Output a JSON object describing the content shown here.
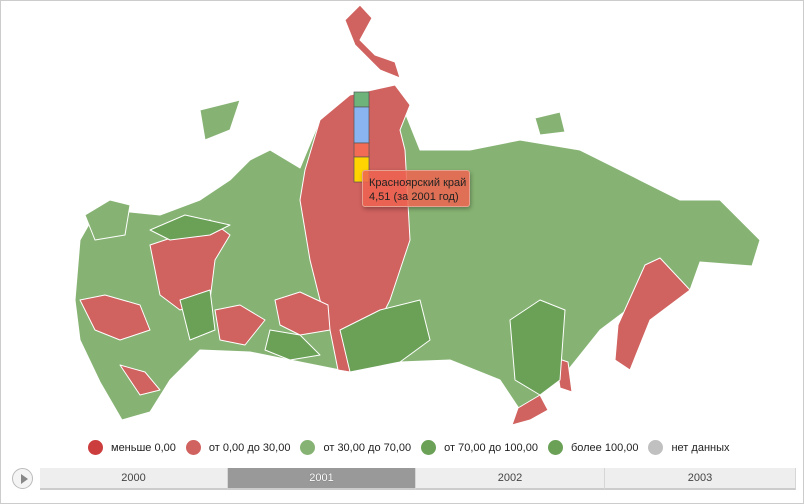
{
  "colors": {
    "red": "#d0625f",
    "light_green": "#86b373",
    "dark_green": "#6aa157",
    "less": "#cc3e3e",
    "nodata": "#c0c0c0"
  },
  "tooltip": {
    "region": "Красноярский край",
    "value": "4,51 (за 2001 год)"
  },
  "legend": [
    {
      "label": "меньше 0,00",
      "color": "#cc3e3e"
    },
    {
      "label": "от 0,00 до 30,00",
      "color": "#d0625f"
    },
    {
      "label": "от 30,00 до 70,00",
      "color": "#86b373"
    },
    {
      "label": "от 70,00 до 100,00",
      "color": "#6aa157"
    },
    {
      "label": "более 100,00",
      "color": "#6aa157"
    },
    {
      "label": "нет данных",
      "color": "#c0c0c0"
    }
  ],
  "timeline": {
    "years": [
      "2000",
      "2001",
      "2002",
      "2003"
    ],
    "selected": "2001",
    "play_icon": "play-icon"
  },
  "mini_bar": {
    "colors": [
      "#6db37a",
      "#8ab4f0",
      "#f26b55",
      "#ffd400"
    ]
  }
}
